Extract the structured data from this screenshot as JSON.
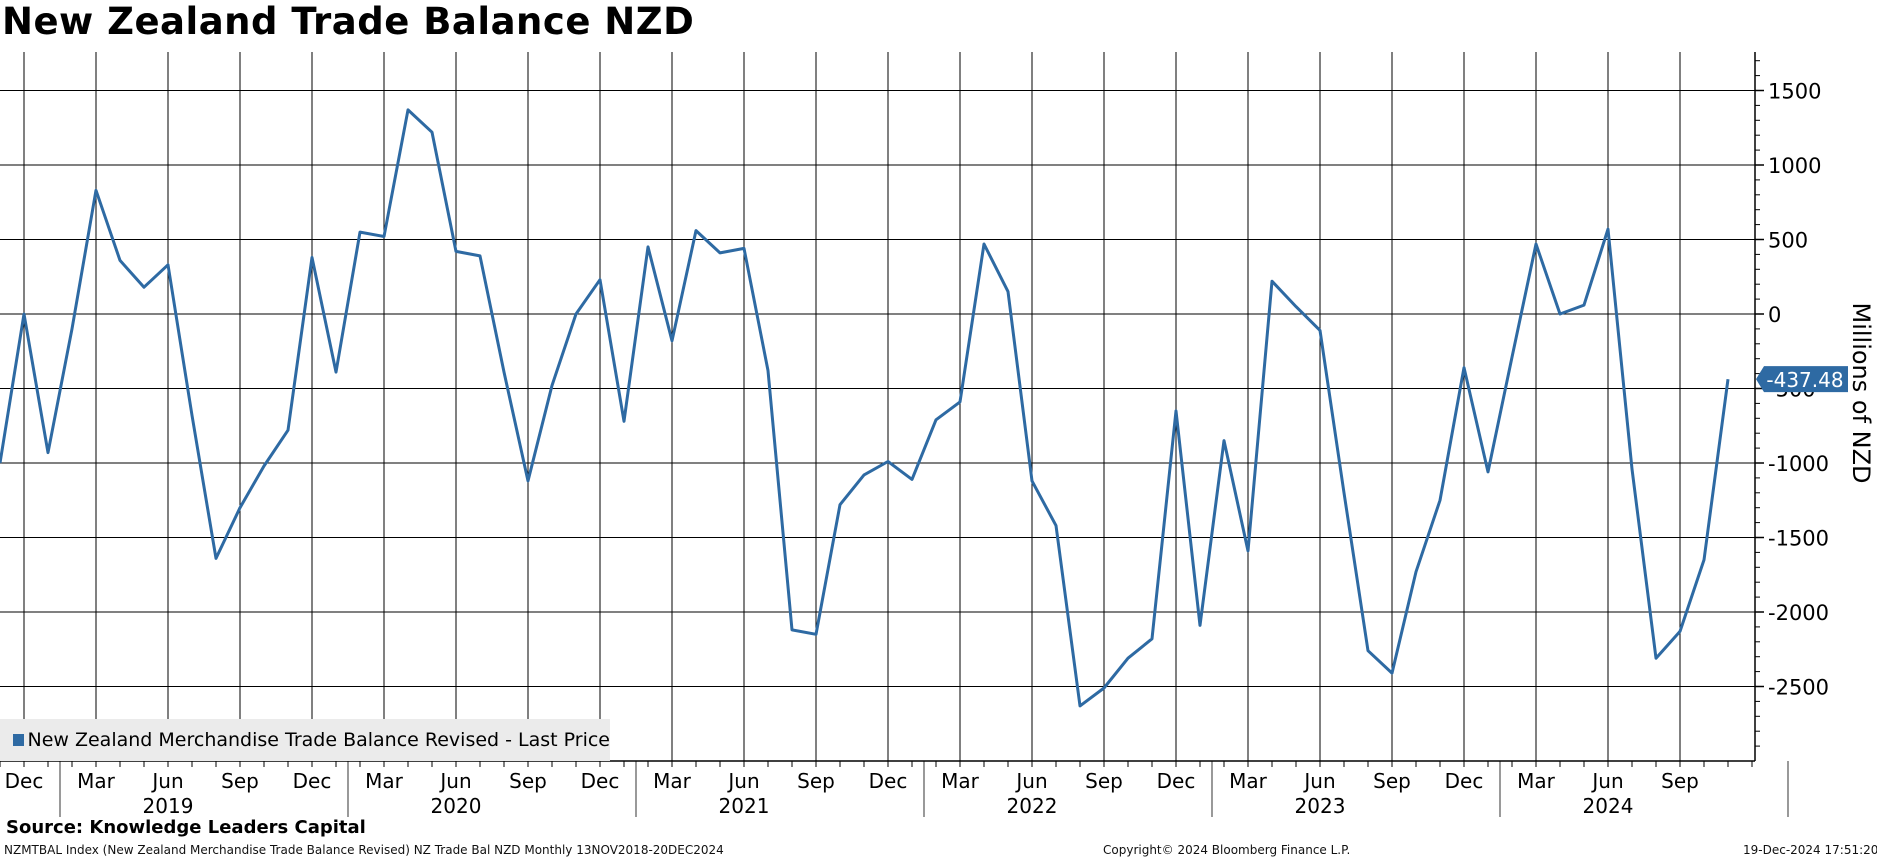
{
  "title": "New Zealand Trade Balance NZD",
  "source": "Source: Knowledge Leaders Capital",
  "footer": {
    "description": "NZMTBAL Index (New Zealand Merchandise Trade Balance Revised) NZ Trade Bal NZD  Monthly 13NOV2018-20DEC2024",
    "copyright": "Copyright© 2024 Bloomberg Finance L.P.",
    "timestamp": "19-Dec-2024 17:51:20"
  },
  "colors": {
    "series": "#2e6aa3",
    "grid": "#000000",
    "legend_bg": "#ebebeb"
  },
  "chart_data": {
    "type": "line",
    "title": "New Zealand Trade Balance NZD",
    "ylabel": "Millions of NZD",
    "ylim": [
      -3000,
      1750
    ],
    "yticks": [
      1500,
      1000,
      500,
      0,
      -500,
      -1000,
      -1500,
      -2000,
      -2500
    ],
    "y_axis_side": "right",
    "grid": true,
    "legend_placement": "bottom-left",
    "last_value_label": "-437.48",
    "x_month_labels": [
      "Dec",
      "Mar",
      "Jun",
      "Sep",
      "Dec",
      "Mar",
      "Jun",
      "Sep",
      "Dec",
      "Mar",
      "Jun",
      "Sep",
      "Dec",
      "Mar",
      "Jun",
      "Sep",
      "Dec",
      "Mar",
      "Jun",
      "Sep",
      "Dec",
      "Mar",
      "Jun",
      "Sep"
    ],
    "x_year_labels": [
      "2019",
      "2020",
      "2021",
      "2022",
      "2023",
      "2024"
    ],
    "series": [
      {
        "name": "New Zealand Merchandise Trade Balance Revised - Last Price",
        "x": [
          "2018-11",
          "2018-12",
          "2019-01",
          "2019-02",
          "2019-03",
          "2019-04",
          "2019-05",
          "2019-06",
          "2019-07",
          "2019-08",
          "2019-09",
          "2019-10",
          "2019-11",
          "2019-12",
          "2020-01",
          "2020-02",
          "2020-03",
          "2020-04",
          "2020-05",
          "2020-06",
          "2020-07",
          "2020-08",
          "2020-09",
          "2020-10",
          "2020-11",
          "2020-12",
          "2021-01",
          "2021-02",
          "2021-03",
          "2021-04",
          "2021-05",
          "2021-06",
          "2021-07",
          "2021-08",
          "2021-09",
          "2021-10",
          "2021-11",
          "2021-12",
          "2022-01",
          "2022-02",
          "2022-03",
          "2022-04",
          "2022-05",
          "2022-06",
          "2022-07",
          "2022-08",
          "2022-09",
          "2022-10",
          "2022-11",
          "2022-12",
          "2023-01",
          "2023-02",
          "2023-03",
          "2023-04",
          "2023-05",
          "2023-06",
          "2023-07",
          "2023-08",
          "2023-09",
          "2023-10",
          "2023-11",
          "2023-12",
          "2024-01",
          "2024-02",
          "2024-03",
          "2024-04",
          "2024-05",
          "2024-06",
          "2024-07",
          "2024-08",
          "2024-09",
          "2024-10",
          "2024-11"
        ],
        "values": [
          -1000,
          0,
          -930,
          -100,
          830,
          360,
          180,
          330,
          -680,
          -1640,
          -1300,
          -1020,
          -780,
          380,
          -390,
          550,
          520,
          1370,
          1220,
          420,
          390,
          -390,
          -1120,
          -480,
          0,
          230,
          -720,
          450,
          -180,
          560,
          410,
          440,
          -380,
          -2120,
          -2150,
          -1280,
          -1080,
          -990,
          -1110,
          -710,
          -590,
          470,
          150,
          -1120,
          -1420,
          -2630,
          -2510,
          -2310,
          -2180,
          -650,
          -2090,
          -850,
          -1590,
          220,
          50,
          -110,
          -1200,
          -2260,
          -2410,
          -1730,
          -1250,
          -360,
          -1060,
          -290,
          470,
          0,
          60,
          570,
          -1040,
          -2310,
          -2130,
          -1650,
          -437.48
        ]
      }
    ]
  }
}
